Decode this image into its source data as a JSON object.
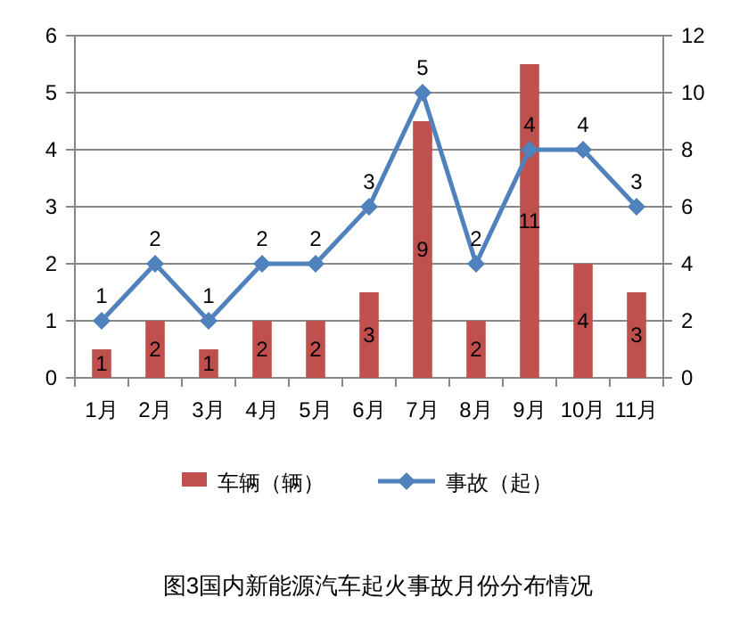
{
  "chart_data": {
    "type": "bar",
    "title": "图3国内新能源汽车起火事故月份分布情况",
    "categories": [
      "1月",
      "2月",
      "3月",
      "4月",
      "5月",
      "6月",
      "7月",
      "8月",
      "9月",
      "10月",
      "11月"
    ],
    "series": [
      {
        "name": "车辆（辆）",
        "axis": "y2",
        "color": "#c0504d",
        "values": [
          1,
          2,
          1,
          2,
          2,
          3,
          9,
          2,
          11,
          4,
          3
        ]
      },
      {
        "name": "事故（起）",
        "type": "line",
        "color": "#4f81bd",
        "marker": "diamond",
        "values": [
          1,
          2,
          1,
          2,
          2,
          3,
          5,
          2,
          4,
          4,
          3
        ]
      }
    ],
    "ylim": [
      0,
      6
    ],
    "yticks": [
      0,
      1,
      2,
      3,
      4,
      5,
      6
    ],
    "y2lim": [
      0,
      12
    ],
    "y2ticks": [
      0,
      2,
      4,
      6,
      8,
      10,
      12
    ],
    "grid": "y",
    "legend": "bottom",
    "data_labels": true
  }
}
